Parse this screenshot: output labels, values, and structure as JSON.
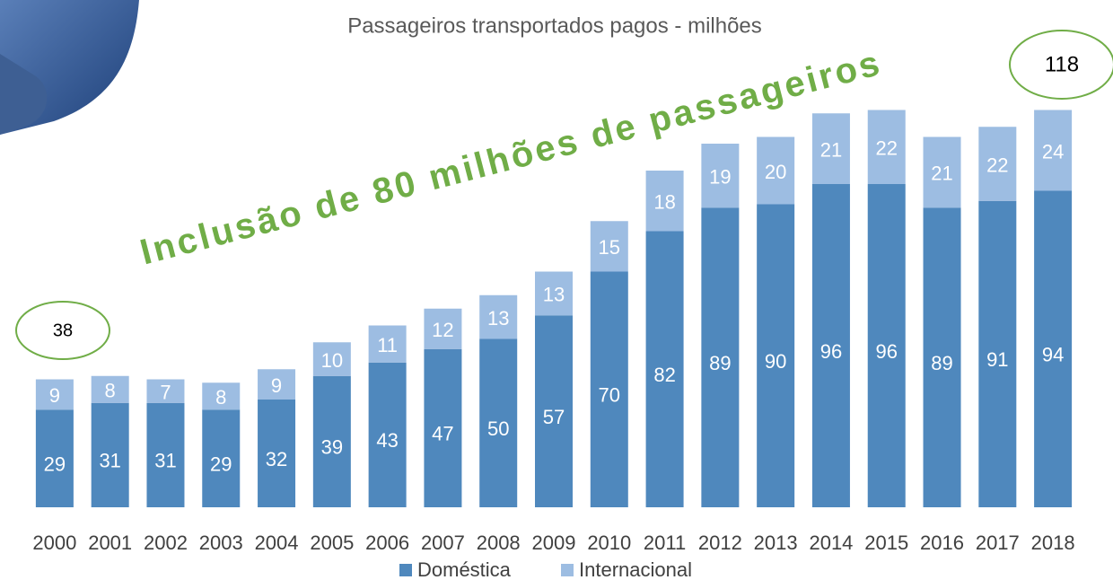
{
  "chart_data": {
    "type": "bar",
    "stacked": true,
    "title": "Passageiros transportados pagos - milhões",
    "annotations": [
      "Inclusão de 80 milhões de passageiros",
      "38",
      "118"
    ],
    "categories": [
      "2000",
      "2001",
      "2002",
      "2003",
      "2004",
      "2005",
      "2006",
      "2007",
      "2008",
      "2009",
      "2010",
      "2011",
      "2012",
      "2013",
      "2014",
      "2015",
      "2016",
      "2017",
      "2018"
    ],
    "series": [
      {
        "name": "Doméstica",
        "color": "#4f88bd",
        "values": [
          29,
          31,
          31,
          29,
          32,
          39,
          43,
          47,
          50,
          57,
          70,
          82,
          89,
          90,
          96,
          96,
          89,
          91,
          94
        ]
      },
      {
        "name": "Internacional",
        "color": "#9dbde2",
        "values": [
          9,
          8,
          7,
          8,
          9,
          10,
          11,
          12,
          13,
          13,
          15,
          18,
          19,
          20,
          21,
          22,
          21,
          22,
          24
        ]
      }
    ],
    "ylim": [
      0,
      120
    ],
    "legend": "bottom"
  }
}
